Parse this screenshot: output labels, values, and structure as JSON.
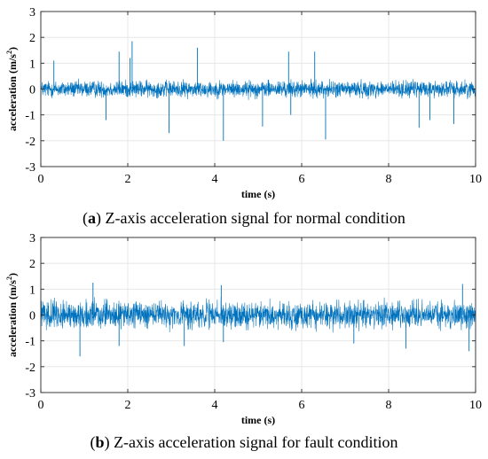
{
  "panel_a": {
    "caption_letter": "a",
    "caption_text": "Z-axis acceleration signal for normal condition"
  },
  "panel_b": {
    "caption_letter": "b",
    "caption_text": "Z-axis acceleration signal for fault condition"
  },
  "colors": {
    "signal": "#0072BD",
    "grid": "#e3e3e3",
    "axis": "#262626"
  },
  "chart_data": [
    {
      "type": "line",
      "title": "",
      "xlabel": "time (s)",
      "ylabel": "acceleration (m/s2)",
      "xlim": [
        0,
        10
      ],
      "ylim": [
        -3,
        3
      ],
      "xticks": [
        0,
        2,
        4,
        6,
        8,
        10
      ],
      "yticks": [
        -3,
        -2,
        -1,
        0,
        1,
        2,
        3
      ],
      "grid": true,
      "series": [
        {
          "noise_amplitude": 0.35,
          "spikes": [
            {
              "x": 0.3,
              "y": 1.1
            },
            {
              "x": 1.5,
              "y": -1.2
            },
            {
              "x": 1.8,
              "y": 1.45
            },
            {
              "x": 2.05,
              "y": 1.2
            },
            {
              "x": 2.1,
              "y": 1.85
            },
            {
              "x": 2.95,
              "y": -1.7
            },
            {
              "x": 3.6,
              "y": 1.6
            },
            {
              "x": 4.2,
              "y": -2.0
            },
            {
              "x": 5.1,
              "y": -1.45
            },
            {
              "x": 5.7,
              "y": 1.45
            },
            {
              "x": 5.75,
              "y": -1.0
            },
            {
              "x": 6.3,
              "y": 1.45
            },
            {
              "x": 6.55,
              "y": -1.95
            },
            {
              "x": 8.7,
              "y": -1.5
            },
            {
              "x": 8.95,
              "y": -1.2
            },
            {
              "x": 9.5,
              "y": -1.35
            }
          ]
        }
      ]
    },
    {
      "type": "line",
      "title": "",
      "xlabel": "time (s)",
      "ylabel": "acceleration (m/s2)",
      "xlim": [
        0,
        10
      ],
      "ylim": [
        -3,
        3
      ],
      "xticks": [
        0,
        2,
        4,
        6,
        8,
        10
      ],
      "yticks": [
        -3,
        -2,
        -1,
        0,
        1,
        2,
        3
      ],
      "grid": true,
      "series": [
        {
          "noise_amplitude": 0.55,
          "spikes": [
            {
              "x": 0.9,
              "y": -1.6
            },
            {
              "x": 1.2,
              "y": 1.25
            },
            {
              "x": 1.8,
              "y": -1.2
            },
            {
              "x": 3.3,
              "y": -1.2
            },
            {
              "x": 4.15,
              "y": 1.15
            },
            {
              "x": 4.2,
              "y": -1.05
            },
            {
              "x": 7.2,
              "y": -1.1
            },
            {
              "x": 8.4,
              "y": -1.3
            },
            {
              "x": 9.7,
              "y": 1.2
            },
            {
              "x": 9.85,
              "y": -1.4
            }
          ]
        }
      ]
    }
  ]
}
